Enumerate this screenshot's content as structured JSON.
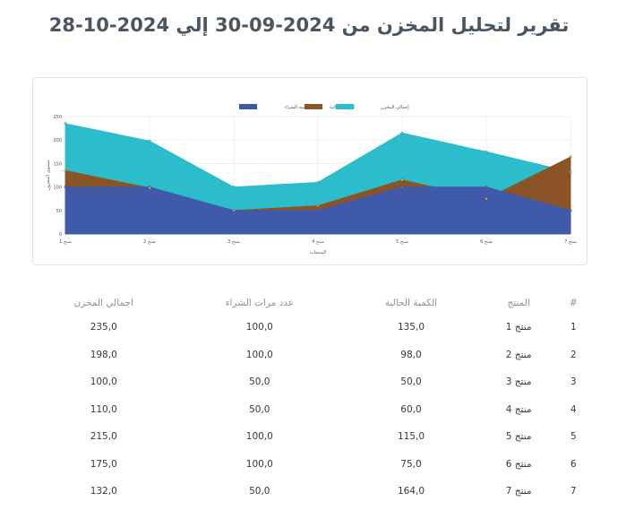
{
  "report": {
    "title": "تقرير لتحليل المخزن من 2024-09-30 إلي 2024-10-28"
  },
  "colors": {
    "purchase": "#3f5aa8",
    "current": "#8a5427",
    "total": "#2bbdcc"
  },
  "chart_data": {
    "type": "area",
    "categories": [
      "منتج 1",
      "منتج 2",
      "منتج 3",
      "منتج 4",
      "منتج 5",
      "منتج 6",
      "منتج 7"
    ],
    "series": [
      {
        "name": "كمية الشراء",
        "values": [
          100,
          100,
          50,
          50,
          100,
          100,
          50
        ]
      },
      {
        "name": "الكمية الحالية",
        "values": [
          135,
          98,
          50,
          60,
          115,
          75,
          164
        ]
      },
      {
        "name": "إجمالي المخزن",
        "values": [
          235,
          198,
          100,
          110,
          215,
          175,
          132
        ]
      }
    ],
    "xlabel": "المنتجات",
    "ylabel": "مستوى المخزون",
    "ylim": [
      0,
      250
    ],
    "yticks": [
      "0",
      "50",
      "100",
      "150",
      "200",
      "250"
    ],
    "grid": true,
    "legend": "top-center"
  },
  "table": {
    "headers": {
      "index": "#",
      "product": "المنتج",
      "current": "الكمية الحالية",
      "purchases": "عدد مرات الشراء",
      "total": "اجمالي المخزن"
    },
    "rows": [
      {
        "index": "1",
        "product": "منتج 1",
        "current": "135,0",
        "purchases": "100,0",
        "total": "235,0"
      },
      {
        "index": "2",
        "product": "منتج 2",
        "current": "98,0",
        "purchases": "100,0",
        "total": "198,0"
      },
      {
        "index": "3",
        "product": "منتج 3",
        "current": "50,0",
        "purchases": "50,0",
        "total": "100,0"
      },
      {
        "index": "4",
        "product": "منتج 4",
        "current": "60,0",
        "purchases": "50,0",
        "total": "110,0"
      },
      {
        "index": "5",
        "product": "منتج 5",
        "current": "115,0",
        "purchases": "100,0",
        "total": "215,0"
      },
      {
        "index": "6",
        "product": "منتج 6",
        "current": "75,0",
        "purchases": "100,0",
        "total": "175,0"
      },
      {
        "index": "7",
        "product": "منتج 7",
        "current": "164,0",
        "purchases": "50,0",
        "total": "132,0"
      }
    ]
  }
}
